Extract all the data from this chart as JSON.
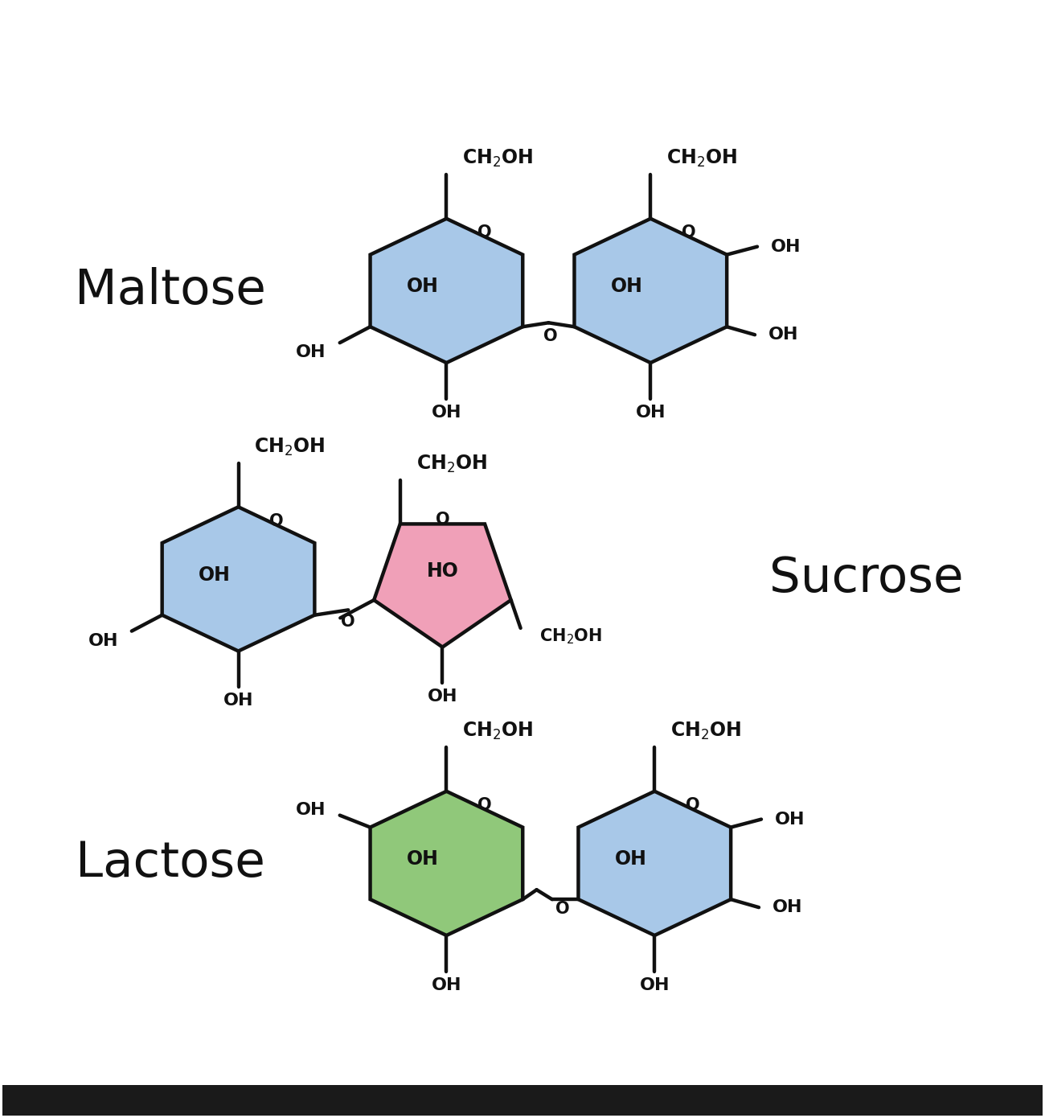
{
  "background_color": "#ffffff",
  "blue_color": "#a8c8e8",
  "pink_color": "#f0a0b8",
  "green_color": "#90c87a",
  "line_color": "#111111",
  "text_color": "#111111",
  "maltose_label": "Maltose",
  "sucrose_label": "Sucrose",
  "lactose_label": "Lactose",
  "label_fontsize": 44,
  "chem_fontsize": 17,
  "oh_fontsize": 17,
  "lw": 3.2
}
